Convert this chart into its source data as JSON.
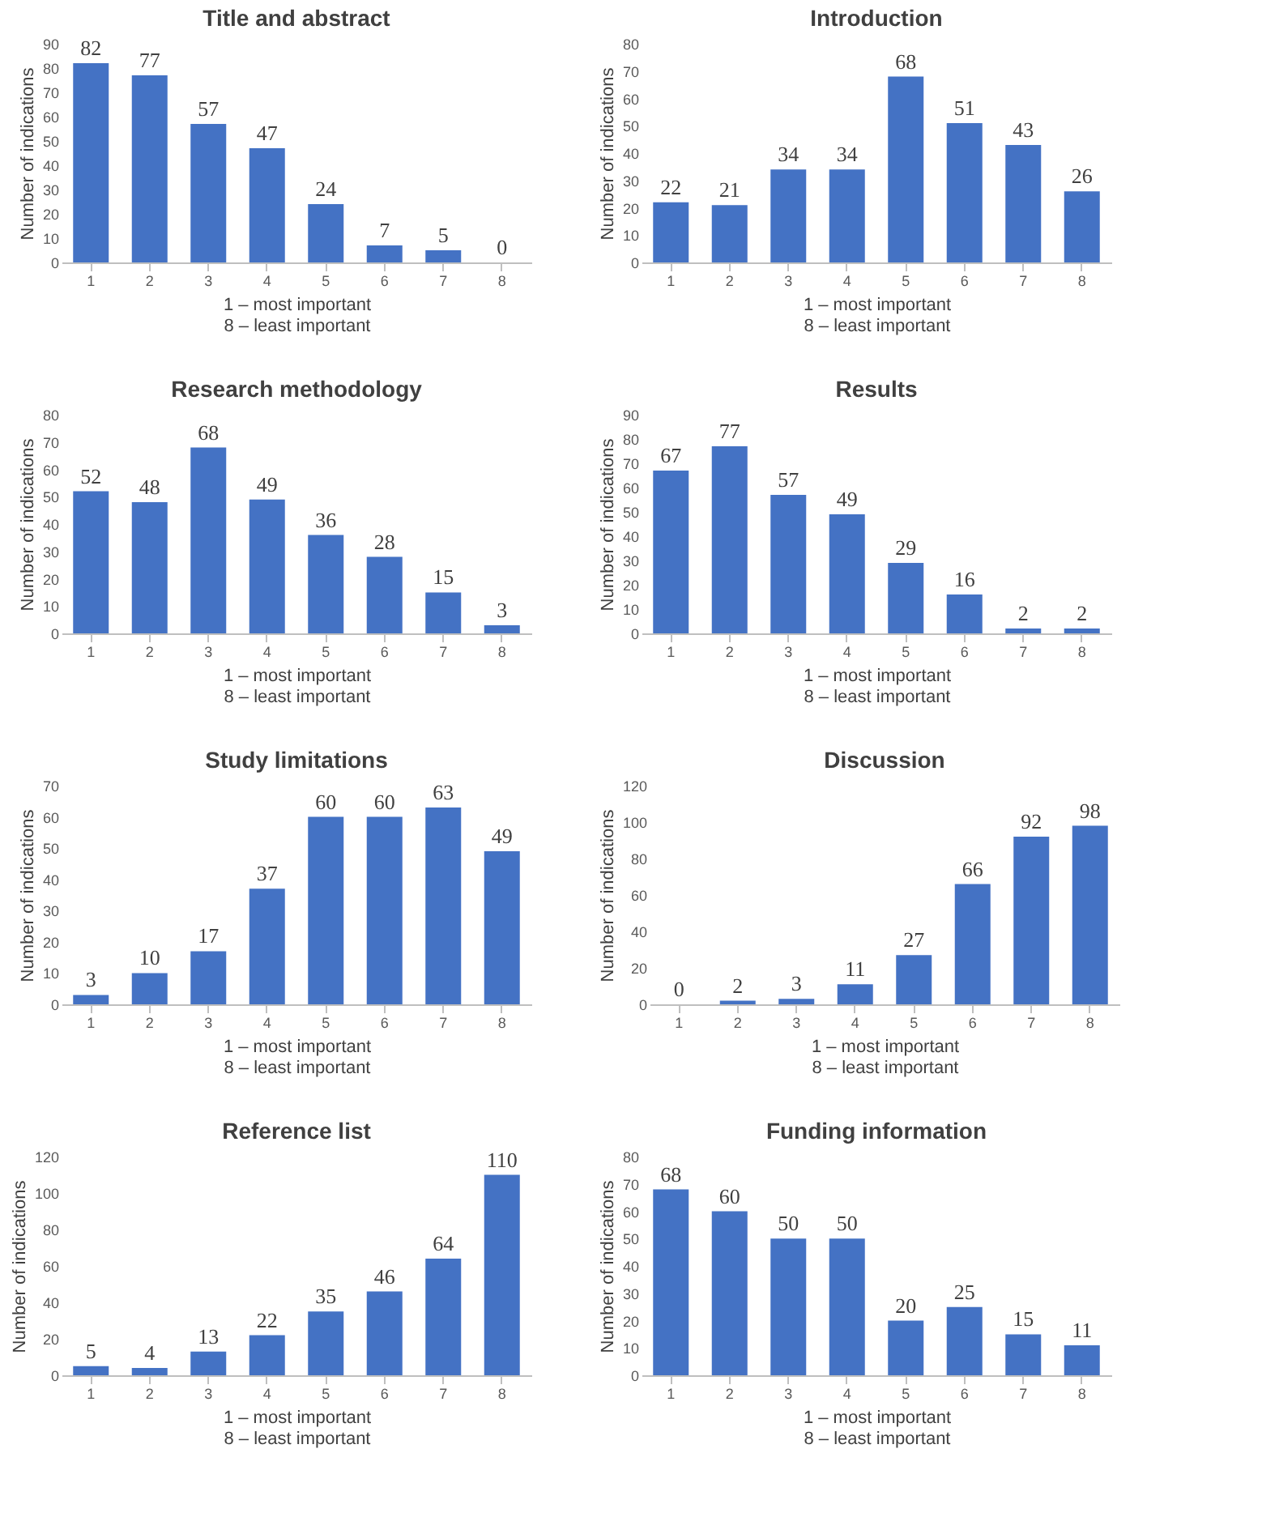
{
  "chart_data": [
    {
      "type": "bar",
      "title": "Title and abstract",
      "categories": [
        "1",
        "2",
        "3",
        "4",
        "5",
        "6",
        "7",
        "8"
      ],
      "values": [
        82,
        77,
        57,
        47,
        24,
        7,
        5,
        0
      ],
      "color": "#4472c4",
      "ylim": [
        0,
        90
      ],
      "yticks": [
        0,
        10,
        20,
        30,
        40,
        50,
        60,
        70,
        80,
        90
      ],
      "xlabel": "1 – most important\n8 – least important",
      "ylabel": "Number of indications",
      "data_labels": true,
      "grid": false
    },
    {
      "type": "bar",
      "title": "Introduction",
      "categories": [
        "1",
        "2",
        "3",
        "4",
        "5",
        "6",
        "7",
        "8"
      ],
      "values": [
        22,
        21,
        34,
        34,
        68,
        51,
        43,
        26
      ],
      "color": "#4472c4",
      "ylim": [
        0,
        80
      ],
      "yticks": [
        0,
        10,
        20,
        30,
        40,
        50,
        60,
        70,
        80
      ],
      "xlabel": "1 – most important\n8 – least important",
      "ylabel": "Number of indications",
      "data_labels": true,
      "grid": false
    },
    {
      "type": "bar",
      "title": "Research methodology",
      "categories": [
        "1",
        "2",
        "3",
        "4",
        "5",
        "6",
        "7",
        "8"
      ],
      "values": [
        52,
        48,
        68,
        49,
        36,
        28,
        15,
        3
      ],
      "color": "#4472c4",
      "ylim": [
        0,
        80
      ],
      "yticks": [
        0,
        10,
        20,
        30,
        40,
        50,
        60,
        70,
        80
      ],
      "xlabel": "1 – most important\n8 – least important",
      "ylabel": "Number of indications",
      "data_labels": true,
      "grid": false
    },
    {
      "type": "bar",
      "title": "Results",
      "categories": [
        "1",
        "2",
        "3",
        "4",
        "5",
        "6",
        "7",
        "8"
      ],
      "values": [
        67,
        77,
        57,
        49,
        29,
        16,
        2,
        2
      ],
      "color": "#4472c4",
      "ylim": [
        0,
        90
      ],
      "yticks": [
        0,
        10,
        20,
        30,
        40,
        50,
        60,
        70,
        80,
        90
      ],
      "xlabel": "1 – most important\n8 – least important",
      "ylabel": "Number of indications",
      "data_labels": true,
      "grid": false
    },
    {
      "type": "bar",
      "title": "Study limitations",
      "categories": [
        "1",
        "2",
        "3",
        "4",
        "5",
        "6",
        "7",
        "8"
      ],
      "values": [
        3,
        10,
        17,
        37,
        60,
        60,
        63,
        49
      ],
      "color": "#4472c4",
      "ylim": [
        0,
        70
      ],
      "yticks": [
        0,
        10,
        20,
        30,
        40,
        50,
        60,
        70
      ],
      "xlabel": "1 – most important\n8 – least important",
      "ylabel": "Number of indications",
      "data_labels": true,
      "grid": false
    },
    {
      "type": "bar",
      "title": "Discussion",
      "categories": [
        "1",
        "2",
        "3",
        "4",
        "5",
        "6",
        "7",
        "8"
      ],
      "values": [
        0,
        2,
        3,
        11,
        27,
        66,
        92,
        98
      ],
      "color": "#4472c4",
      "ylim": [
        0,
        120
      ],
      "yticks": [
        0,
        20,
        40,
        60,
        80,
        100,
        120
      ],
      "xlabel": "1 – most important\n8 – least important",
      "ylabel": "Number of indications",
      "data_labels": true,
      "grid": false
    },
    {
      "type": "bar",
      "title": "Reference list",
      "categories": [
        "1",
        "2",
        "3",
        "4",
        "5",
        "6",
        "7",
        "8"
      ],
      "values": [
        5,
        4,
        13,
        22,
        35,
        46,
        64,
        110
      ],
      "color": "#4472c4",
      "ylim": [
        0,
        120
      ],
      "yticks": [
        0,
        20,
        40,
        60,
        80,
        100,
        120
      ],
      "xlabel": "1 – most important\n8 – least important",
      "ylabel": "Number of indications",
      "data_labels": true,
      "grid": false
    },
    {
      "type": "bar",
      "title": "Funding information",
      "categories": [
        "1",
        "2",
        "3",
        "4",
        "5",
        "6",
        "7",
        "8"
      ],
      "values": [
        68,
        60,
        50,
        50,
        20,
        25,
        15,
        11
      ],
      "color": "#4472c4",
      "ylim": [
        0,
        80
      ],
      "yticks": [
        0,
        10,
        20,
        30,
        40,
        50,
        60,
        70,
        80
      ],
      "xlabel": "1 – most important\n8 – least important",
      "ylabel": "Number of indications",
      "data_labels": true,
      "grid": false
    }
  ]
}
